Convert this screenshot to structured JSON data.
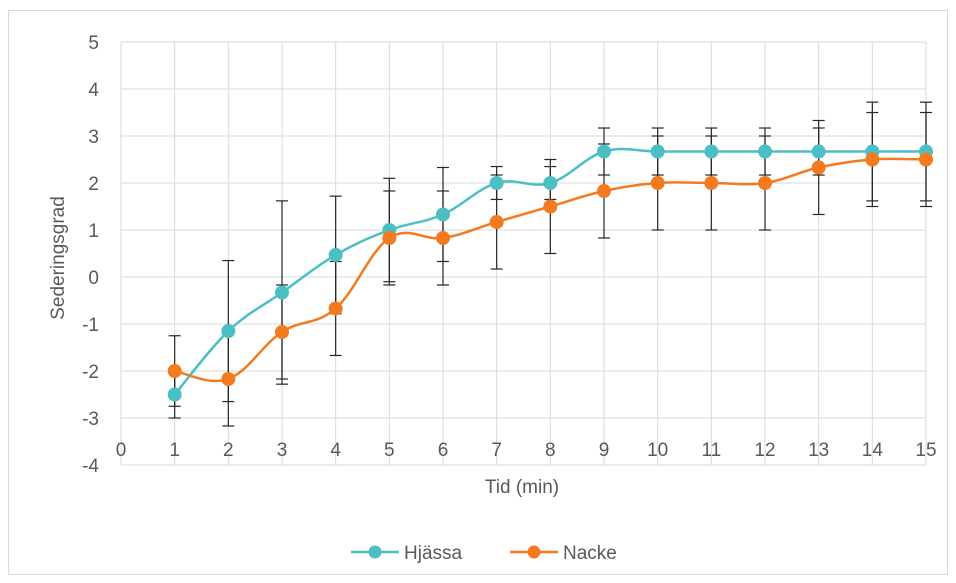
{
  "chart_data": {
    "type": "line",
    "title": "",
    "xlabel": "Tid (min)",
    "ylabel": "Sederingsgrad",
    "xlim": [
      0,
      15
    ],
    "ylim": [
      -4,
      5
    ],
    "x_ticks": [
      0,
      1,
      2,
      3,
      4,
      5,
      6,
      7,
      8,
      9,
      10,
      11,
      12,
      13,
      14,
      15
    ],
    "y_ticks": [
      -4,
      -3,
      -2,
      -1,
      0,
      1,
      2,
      3,
      4,
      5
    ],
    "grid": true,
    "legend_position": "bottom",
    "x": [
      1,
      2,
      3,
      4,
      5,
      6,
      7,
      8,
      9,
      10,
      11,
      12,
      13,
      14,
      15
    ],
    "series": [
      {
        "name": "Hjässa",
        "color": "#4bbfc3",
        "values": [
          -2.5,
          -1.15,
          -0.33,
          0.47,
          1.0,
          1.33,
          2.0,
          2.0,
          2.67,
          2.67,
          2.67,
          2.67,
          2.67,
          2.67,
          2.67
        ],
        "error": [
          0.5,
          1.5,
          1.95,
          1.25,
          1.1,
          1.0,
          0.35,
          0.35,
          0.5,
          0.5,
          0.5,
          0.5,
          0.5,
          1.05,
          1.05
        ]
      },
      {
        "name": "Nacke",
        "color": "#f37a1f",
        "values": [
          -2.0,
          -2.17,
          -1.17,
          -0.67,
          0.83,
          0.83,
          1.17,
          1.5,
          1.83,
          2.0,
          2.0,
          2.0,
          2.33,
          2.5,
          2.5
        ],
        "error": [
          0.75,
          1.0,
          1.0,
          1.0,
          1.0,
          1.0,
          1.0,
          1.0,
          1.0,
          1.0,
          1.0,
          1.0,
          1.0,
          1.0,
          1.0
        ]
      }
    ]
  }
}
